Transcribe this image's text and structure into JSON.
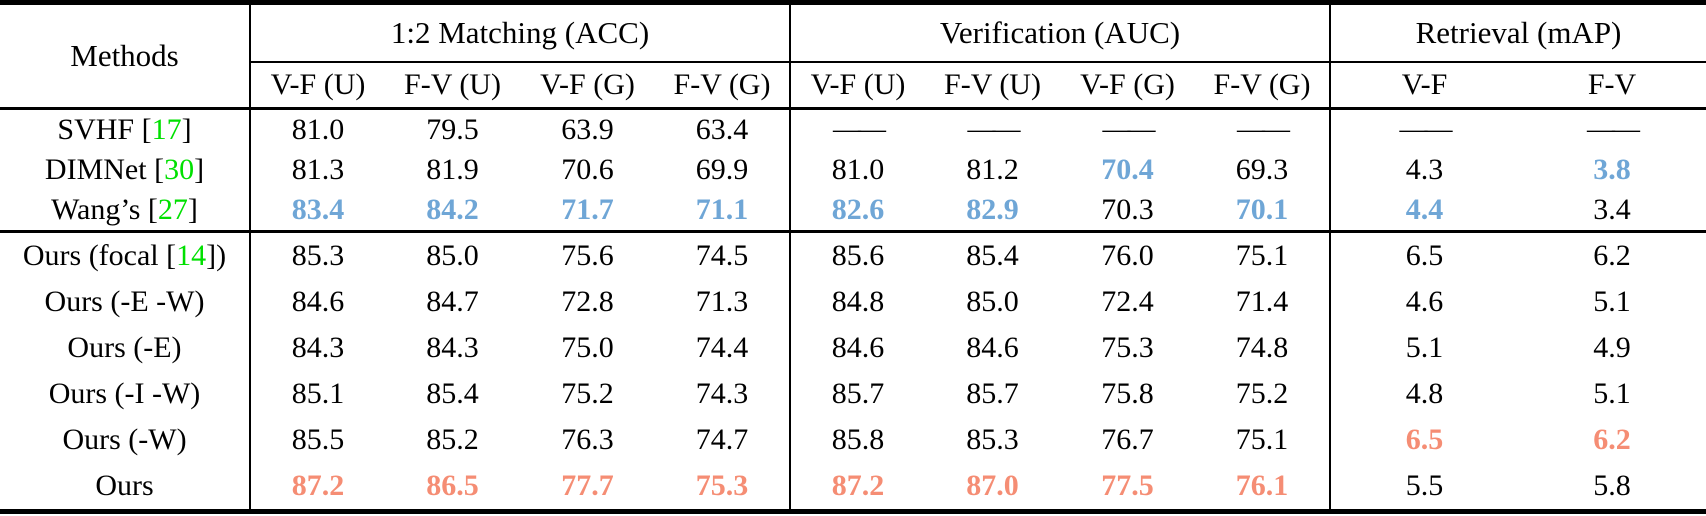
{
  "colors": {
    "citation_green": "#00E000",
    "highlight_blue": "#6FA6D6",
    "highlight_salmon": "#F58D74",
    "text": "#000000",
    "background": "#FFFFFF"
  },
  "table": {
    "method_header": "Methods",
    "groups": [
      {
        "label": "1:2 Matching (ACC)",
        "subcols": [
          "V-F (U)",
          "F-V (U)",
          "V-F (G)",
          "F-V (G)"
        ]
      },
      {
        "label": "Verification (AUC)",
        "subcols": [
          "V-F (U)",
          "F-V (U)",
          "V-F (G)",
          "F-V (G)"
        ]
      },
      {
        "label": "Retrieval (mAP)",
        "subcols": [
          "V-F",
          "F-V"
        ]
      }
    ],
    "rows": [
      {
        "method": {
          "pre": "SVHF [",
          "cite": "17",
          "post": "]"
        },
        "values": [
          {
            "t": "81.0"
          },
          {
            "t": "79.5"
          },
          {
            "t": "63.9"
          },
          {
            "t": "63.4"
          },
          {
            "t": "——",
            "dash": true
          },
          {
            "t": "——",
            "dash": true
          },
          {
            "t": "——",
            "dash": true
          },
          {
            "t": "——",
            "dash": true
          },
          {
            "t": "——",
            "dash": true
          },
          {
            "t": "——",
            "dash": true
          }
        ]
      },
      {
        "method": {
          "pre": "DIMNet [",
          "cite": "30",
          "post": "]"
        },
        "values": [
          {
            "t": "81.3"
          },
          {
            "t": "81.9"
          },
          {
            "t": "70.6"
          },
          {
            "t": "69.9"
          },
          {
            "t": "81.0"
          },
          {
            "t": "81.2"
          },
          {
            "t": "70.4",
            "c": "blue"
          },
          {
            "t": "69.3"
          },
          {
            "t": "4.3"
          },
          {
            "t": "3.8",
            "c": "blue"
          }
        ]
      },
      {
        "method": {
          "pre": "Wang’s [",
          "cite": "27",
          "post": "]"
        },
        "values": [
          {
            "t": "83.4",
            "c": "blue"
          },
          {
            "t": "84.2",
            "c": "blue"
          },
          {
            "t": "71.7",
            "c": "blue"
          },
          {
            "t": "71.1",
            "c": "blue"
          },
          {
            "t": "82.6",
            "c": "blue"
          },
          {
            "t": "82.9",
            "c": "blue"
          },
          {
            "t": "70.3"
          },
          {
            "t": "70.1",
            "c": "blue"
          },
          {
            "t": "4.4",
            "c": "blue"
          },
          {
            "t": "3.4"
          }
        ]
      },
      {
        "method": {
          "pre": "Ours (focal [",
          "cite": "14",
          "post": "])"
        },
        "values": [
          {
            "t": "85.3"
          },
          {
            "t": "85.0"
          },
          {
            "t": "75.6"
          },
          {
            "t": "74.5"
          },
          {
            "t": "85.6"
          },
          {
            "t": "85.4"
          },
          {
            "t": "76.0"
          },
          {
            "t": "75.1"
          },
          {
            "t": "6.5"
          },
          {
            "t": "6.2"
          }
        ]
      },
      {
        "method": {
          "pre": "Ours (-E -W)",
          "cite": "",
          "post": ""
        },
        "values": [
          {
            "t": "84.6"
          },
          {
            "t": "84.7"
          },
          {
            "t": "72.8"
          },
          {
            "t": "71.3"
          },
          {
            "t": "84.8"
          },
          {
            "t": "85.0"
          },
          {
            "t": "72.4"
          },
          {
            "t": "71.4"
          },
          {
            "t": "4.6"
          },
          {
            "t": "5.1"
          }
        ]
      },
      {
        "method": {
          "pre": "Ours (-E)",
          "cite": "",
          "post": ""
        },
        "values": [
          {
            "t": "84.3"
          },
          {
            "t": "84.3"
          },
          {
            "t": "75.0"
          },
          {
            "t": "74.4"
          },
          {
            "t": "84.6"
          },
          {
            "t": "84.6"
          },
          {
            "t": "75.3"
          },
          {
            "t": "74.8"
          },
          {
            "t": "5.1"
          },
          {
            "t": "4.9"
          }
        ]
      },
      {
        "method": {
          "pre": "Ours (-I -W)",
          "cite": "",
          "post": ""
        },
        "values": [
          {
            "t": "85.1"
          },
          {
            "t": "85.4"
          },
          {
            "t": "75.2"
          },
          {
            "t": "74.3"
          },
          {
            "t": "85.7"
          },
          {
            "t": "85.7"
          },
          {
            "t": "75.8"
          },
          {
            "t": "75.2"
          },
          {
            "t": "4.8"
          },
          {
            "t": "5.1"
          }
        ]
      },
      {
        "method": {
          "pre": "Ours (-W)",
          "cite": "",
          "post": ""
        },
        "values": [
          {
            "t": "85.5"
          },
          {
            "t": "85.2"
          },
          {
            "t": "76.3"
          },
          {
            "t": "74.7"
          },
          {
            "t": "85.8"
          },
          {
            "t": "85.3"
          },
          {
            "t": "76.7"
          },
          {
            "t": "75.1"
          },
          {
            "t": "6.5",
            "c": "salmon"
          },
          {
            "t": "6.2",
            "c": "salmon"
          }
        ]
      },
      {
        "method": {
          "pre": "Ours",
          "cite": "",
          "post": ""
        },
        "values": [
          {
            "t": "87.2",
            "c": "salmon"
          },
          {
            "t": "86.5",
            "c": "salmon"
          },
          {
            "t": "77.7",
            "c": "salmon"
          },
          {
            "t": "75.3",
            "c": "salmon"
          },
          {
            "t": "87.2",
            "c": "salmon"
          },
          {
            "t": "87.0",
            "c": "salmon"
          },
          {
            "t": "77.5",
            "c": "salmon"
          },
          {
            "t": "76.1",
            "c": "salmon"
          },
          {
            "t": "5.5"
          },
          {
            "t": "5.8"
          }
        ]
      }
    ]
  }
}
